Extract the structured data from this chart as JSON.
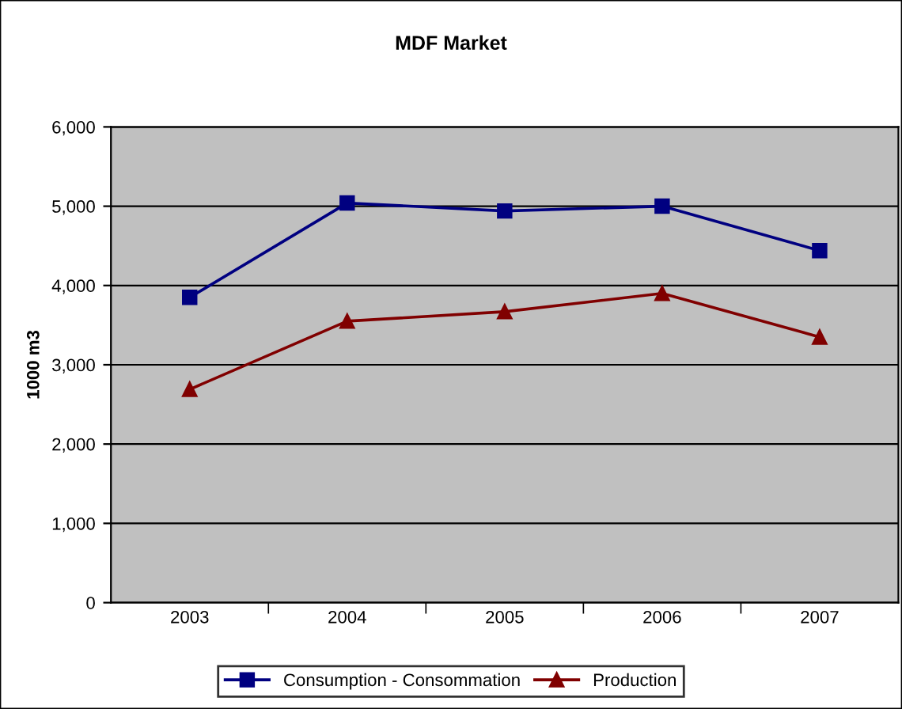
{
  "chart_data": {
    "type": "line",
    "title": "MDF Market",
    "ylabel": "1000 m3",
    "categories": [
      "2003",
      "2004",
      "2005",
      "2006",
      "2007"
    ],
    "series": [
      {
        "name": "Consumption - Consommation",
        "color": "#000080",
        "marker": "square",
        "values": [
          3850,
          5040,
          4940,
          5000,
          4440
        ]
      },
      {
        "name": "Production",
        "color": "#800000",
        "marker": "triangle",
        "values": [
          2690,
          3550,
          3670,
          3900,
          3350
        ]
      }
    ],
    "ylim": [
      0,
      6000
    ],
    "yticks": [
      {
        "value": 0,
        "label": "0"
      },
      {
        "value": 1000,
        "label": "1,000"
      },
      {
        "value": 2000,
        "label": "2,000"
      },
      {
        "value": 3000,
        "label": "3,000"
      },
      {
        "value": 4000,
        "label": "4,000"
      },
      {
        "value": 5000,
        "label": "5,000"
      },
      {
        "value": 6000,
        "label": "6,000"
      }
    ],
    "grid": "y",
    "legend": "bottom",
    "line_style": "solid"
  }
}
